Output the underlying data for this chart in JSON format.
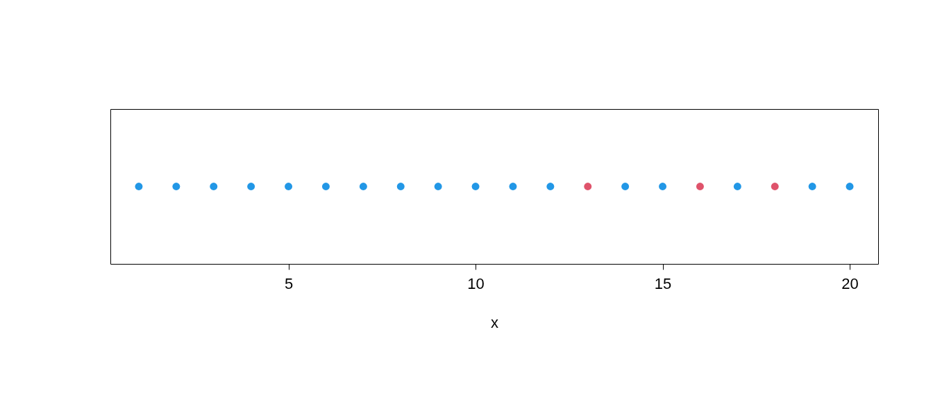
{
  "chart_data": {
    "type": "scatter",
    "orientation": "horizontal",
    "xlabel": "x",
    "marker": "circle",
    "grid": false,
    "categories": [
      null
    ],
    "series": [
      {
        "color": "#2297e6",
        "values": [
          1
        ]
      },
      {
        "color": "#2297e6",
        "values": [
          2
        ]
      },
      {
        "color": "#2297e6",
        "values": [
          3
        ]
      },
      {
        "color": "#2297e6",
        "values": [
          4
        ]
      },
      {
        "color": "#2297e6",
        "values": [
          5
        ]
      },
      {
        "color": "#2297e6",
        "values": [
          6
        ]
      },
      {
        "color": "#2297e6",
        "values": [
          7
        ]
      },
      {
        "color": "#2297e6",
        "values": [
          8
        ]
      },
      {
        "color": "#2297e6",
        "values": [
          9
        ]
      },
      {
        "color": "#2297e6",
        "values": [
          10
        ]
      },
      {
        "color": "#2297e6",
        "values": [
          11
        ]
      },
      {
        "color": "#2297e6",
        "values": [
          12
        ]
      },
      {
        "color": "#df536b",
        "values": [
          13
        ]
      },
      {
        "color": "#2297e6",
        "values": [
          14
        ]
      },
      {
        "color": "#2297e6",
        "values": [
          15
        ]
      },
      {
        "color": "#df536b",
        "values": [
          16
        ]
      },
      {
        "color": "#2297e6",
        "values": [
          17
        ]
      },
      {
        "color": "#df536b",
        "values": [
          18
        ]
      },
      {
        "color": "#2297e6",
        "values": [
          19
        ]
      },
      {
        "color": "#2297e6",
        "values": [
          20
        ]
      }
    ],
    "xlim": [
      0.24,
      20.76
    ],
    "xticks": [
      5,
      10,
      15,
      20
    ]
  }
}
